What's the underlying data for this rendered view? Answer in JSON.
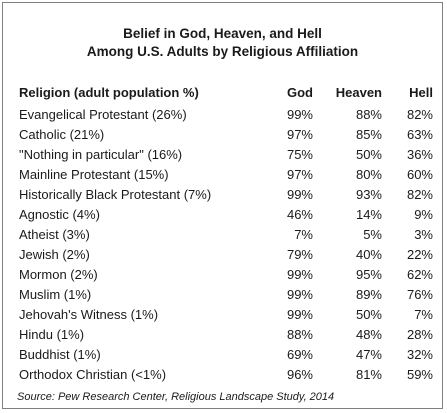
{
  "chart_data": {
    "type": "table",
    "title_lines": [
      "Belief in God, Heaven, and Hell",
      "Among U.S. Adults by Religious Affiliation"
    ],
    "columns": [
      "Religion (adult population %)",
      "God",
      "Heaven",
      "Hell"
    ],
    "rows": [
      {
        "religion": "Evangelical Protestant (26%)",
        "god": "99%",
        "heaven": "88%",
        "hell": "82%"
      },
      {
        "religion": "Catholic (21%)",
        "god": "97%",
        "heaven": "85%",
        "hell": "63%"
      },
      {
        "religion": "\"Nothing in particular\" (16%)",
        "god": "75%",
        "heaven": "50%",
        "hell": "36%"
      },
      {
        "religion": "Mainline Protestant (15%)",
        "god": "97%",
        "heaven": "80%",
        "hell": "60%"
      },
      {
        "religion": "Historically Black Protestant (7%)",
        "god": "99%",
        "heaven": "93%",
        "hell": "82%"
      },
      {
        "religion": "Agnostic (4%)",
        "god": "46%",
        "heaven": "14%",
        "hell": "9%"
      },
      {
        "religion": "Atheist (3%)",
        "god": "7%",
        "heaven": "5%",
        "hell": "3%"
      },
      {
        "religion": "Jewish (2%)",
        "god": "79%",
        "heaven": "40%",
        "hell": "22%"
      },
      {
        "religion": "Mormon (2%)",
        "god": "99%",
        "heaven": "95%",
        "hell": "62%"
      },
      {
        "religion": "Muslim (1%)",
        "god": "99%",
        "heaven": "89%",
        "hell": "76%"
      },
      {
        "religion": "Jehovah's Witness (1%)",
        "god": "99%",
        "heaven": "50%",
        "hell": "7%"
      },
      {
        "religion": "Hindu (1%)",
        "god": "88%",
        "heaven": "48%",
        "hell": "28%"
      },
      {
        "religion": "Buddhist (1%)",
        "god": "69%",
        "heaven": "47%",
        "hell": "32%"
      },
      {
        "religion": "Orthodox Christian (<1%)",
        "god": "96%",
        "heaven": "81%",
        "hell": "59%"
      }
    ],
    "source": "Source: Pew Research Center, Religious Landscape Study, 2014"
  }
}
